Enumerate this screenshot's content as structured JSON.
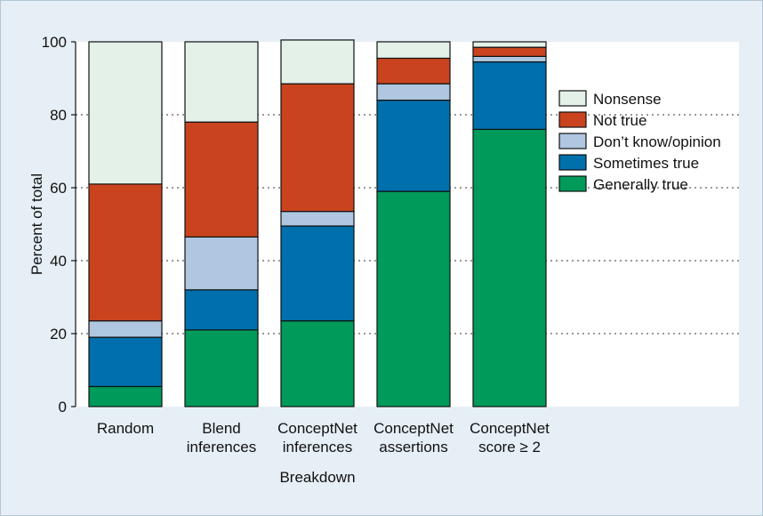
{
  "chart_data": {
    "type": "bar",
    "stacked": true,
    "categories": [
      [
        "Random"
      ],
      [
        "Blend",
        "inferences"
      ],
      [
        "ConceptNet",
        "inferences"
      ],
      [
        "ConceptNet",
        "assertions"
      ],
      [
        "ConceptNet",
        "score ≥ 2"
      ]
    ],
    "series": [
      {
        "name": "Generally true",
        "color": "#009a5a",
        "values": [
          5.5,
          21,
          23.5,
          59,
          76
        ]
      },
      {
        "name": "Sometimes true",
        "color": "#0070ad",
        "values": [
          13.5,
          11,
          26,
          25,
          18.5
        ]
      },
      {
        "name": "Don’t know/opinion",
        "color": "#afc7e0",
        "values": [
          4.5,
          14.5,
          4,
          4.5,
          1.5
        ]
      },
      {
        "name": "Not true",
        "color": "#c9441e",
        "values": [
          37.5,
          31.5,
          35,
          7,
          2.5
        ]
      },
      {
        "name": "Nonsense",
        "color": "#e3f1e9",
        "values": [
          39,
          22,
          12,
          4.5,
          1.5
        ]
      }
    ],
    "legend_order": [
      "Nonsense",
      "Not true",
      "Don’t know/opinion",
      "Sometimes true",
      "Generally true"
    ],
    "legend_position": "right",
    "xlabel": "Breakdown",
    "ylabel": "Percent of total",
    "ylim": [
      0,
      100
    ],
    "yticks": [
      0,
      20,
      40,
      60,
      80,
      100
    ],
    "grid": "horizontal dotted"
  }
}
